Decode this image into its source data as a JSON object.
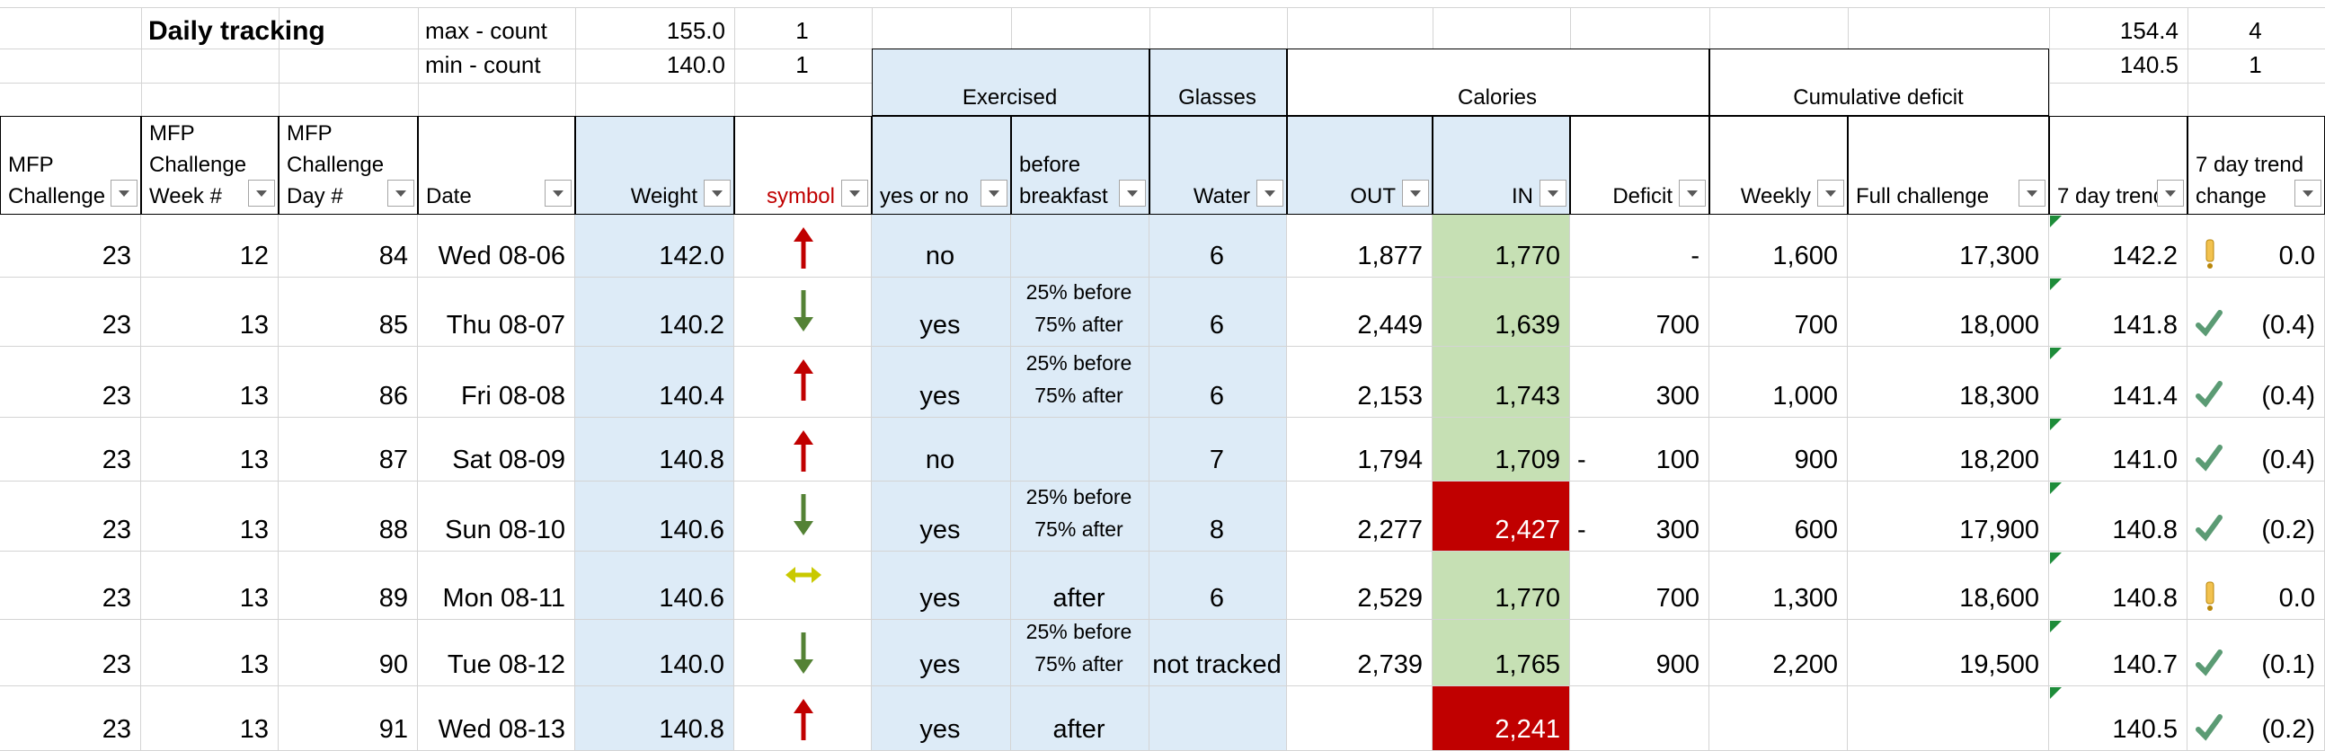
{
  "header": {
    "title": "Daily tracking",
    "max_label": "max - count",
    "max_value": "155.0",
    "max_count": "1",
    "min_label": "min - count",
    "min_value": "140.0",
    "min_count": "1",
    "trend_max": "154.4",
    "trend_max_count": "4",
    "trend_min": "140.5",
    "trend_min_count": "1"
  },
  "groups": [
    "Exercised",
    "Glasses",
    "Calories",
    "Cumulative deficit"
  ],
  "columns": [
    [
      "MFP",
      "Challenge"
    ],
    [
      "MFP",
      "Challenge",
      "Week #"
    ],
    [
      "MFP",
      "Challenge",
      "Day #"
    ],
    [
      "Date"
    ],
    [
      "Weight"
    ],
    [
      "symbol"
    ],
    [
      "yes or no"
    ],
    [
      "before",
      "breakfast"
    ],
    [
      "Water"
    ],
    [
      "OUT"
    ],
    [
      "IN"
    ],
    [
      "Deficit"
    ],
    [
      "Weekly"
    ],
    [
      "Full challenge"
    ],
    [
      "7 day trend"
    ],
    [
      "7 day trend",
      "change"
    ]
  ],
  "rows": [
    [
      "23",
      "12",
      "84",
      "Wed 08-06",
      "142.0",
      null,
      "no",
      null,
      "6",
      "1,877",
      "1,770",
      "-",
      "1,600",
      "17,300",
      "142.2",
      null,
      "0.0"
    ],
    [
      "23",
      "13",
      "85",
      "Thu 08-07",
      "140.2",
      null,
      "yes",
      [
        "25% before",
        "75% after"
      ],
      "6",
      "2,449",
      "1,639",
      "700",
      "700",
      "18,000",
      "141.8",
      null,
      "(0.4)"
    ],
    [
      "23",
      "13",
      "86",
      "Fri 08-08",
      "140.4",
      null,
      "yes",
      [
        "25% before",
        "75% after"
      ],
      "6",
      "2,153",
      "1,743",
      "300",
      "1,000",
      "18,300",
      "141.4",
      null,
      "(0.4)"
    ],
    [
      "23",
      "13",
      "87",
      "Sat 08-09",
      "140.8",
      null,
      "no",
      null,
      "7",
      "1,794",
      "1,709",
      [
        "-",
        "100"
      ],
      "900",
      "18,200",
      "141.0",
      null,
      "(0.4)"
    ],
    [
      "23",
      "13",
      "88",
      "Sun 08-10",
      "140.6",
      null,
      "yes",
      [
        "25% before",
        "75% after"
      ],
      "8",
      "2,277",
      "2,427",
      [
        "-",
        "300"
      ],
      "600",
      "17,900",
      "140.8",
      null,
      "(0.2)"
    ],
    [
      "23",
      "13",
      "89",
      "Mon 08-11",
      "140.6",
      null,
      "yes",
      "after",
      "6",
      "2,529",
      "1,770",
      "700",
      "1,300",
      "18,600",
      "140.8",
      null,
      "0.0"
    ],
    [
      "23",
      "13",
      "90",
      "Tue 08-12",
      "140.0",
      null,
      "yes",
      [
        "25% before",
        "75% after"
      ],
      "not tracked",
      "2,739",
      "1,765",
      "900",
      "2,200",
      "19,500",
      "140.7",
      null,
      "(0.1)"
    ],
    [
      "23",
      "13",
      "91",
      "Wed 08-13",
      "140.8",
      null,
      "yes",
      "after",
      null,
      null,
      "2,241",
      null,
      null,
      null,
      "140.5",
      null,
      "(0.2)"
    ]
  ]
}
